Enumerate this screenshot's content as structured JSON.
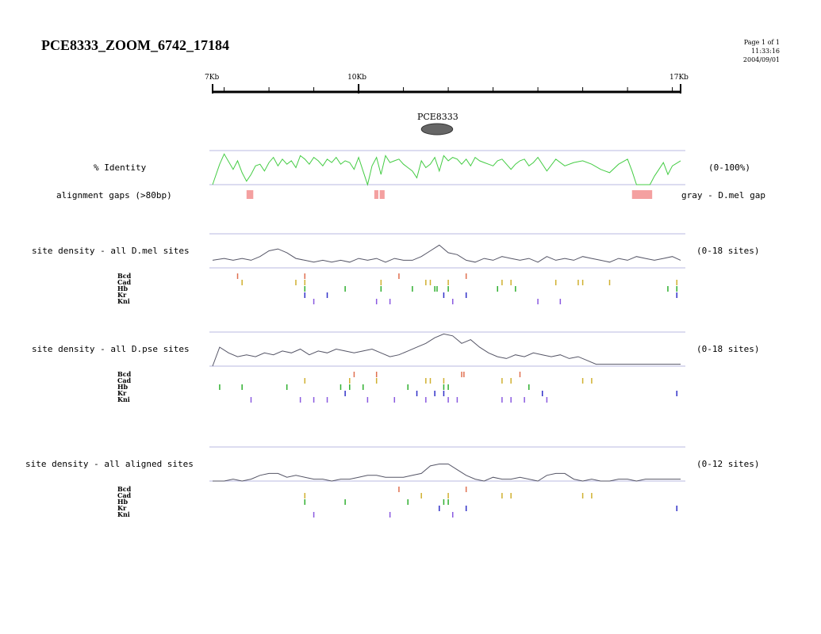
{
  "title": "PCE8333_ZOOM_6742_17184",
  "page_info": [
    "Page 1 of 1",
    "11:33:16",
    "2004/09/01"
  ],
  "colors": {
    "identity": "#44cc44",
    "density": "#555566",
    "guide": "#b8b8e0",
    "gap": "#f4a0a0",
    "scale": "#000000",
    "Bcd": "#e07050",
    "Cad": "#d0b030",
    "Hb": "#30b030",
    "Kr": "#3030c8",
    "Kni": "#8a5ae0"
  },
  "scale": {
    "start_kb": 6.742,
    "end_kb": 17.184,
    "labels": [
      {
        "text": "7Kb",
        "kb": 6.742,
        "side": "start"
      },
      {
        "text": "10Kb",
        "kb": 10.0,
        "side": "middle"
      },
      {
        "text": "17Kb",
        "kb": 17.184,
        "side": "end"
      }
    ],
    "major_ticks_kb": [
      6.742,
      10,
      17.184
    ],
    "minor_ticks_kb": [
      7,
      8,
      9,
      11,
      12,
      13,
      14,
      15,
      16,
      17
    ]
  },
  "gene": {
    "label": "PCE8333",
    "start_kb": 11.4,
    "end_kb": 12.1
  },
  "identity": {
    "label": "% Identity",
    "range_label": "(0-100%)",
    "x_kb": [
      6.742,
      6.9,
      7.0,
      7.2,
      7.3,
      7.4,
      7.5,
      7.6,
      7.7,
      7.8,
      7.9,
      8.0,
      8.1,
      8.2,
      8.3,
      8.4,
      8.5,
      8.6,
      8.7,
      8.8,
      8.9,
      9.0,
      9.1,
      9.2,
      9.3,
      9.4,
      9.5,
      9.6,
      9.7,
      9.8,
      9.9,
      10.0,
      10.1,
      10.2,
      10.3,
      10.4,
      10.5,
      10.6,
      10.7,
      10.8,
      10.9,
      11.0,
      11.1,
      11.2,
      11.3,
      11.4,
      11.5,
      11.6,
      11.7,
      11.8,
      11.9,
      12.0,
      12.1,
      12.2,
      12.3,
      12.4,
      12.5,
      12.6,
      12.7,
      12.8,
      12.9,
      13.0,
      13.1,
      13.2,
      13.3,
      13.4,
      13.5,
      13.6,
      13.7,
      13.8,
      13.9,
      14.0,
      14.2,
      14.4,
      14.6,
      14.8,
      15.0,
      15.2,
      15.4,
      15.6,
      15.8,
      16.0,
      16.1,
      16.2,
      16.3,
      16.4,
      16.5,
      16.6,
      16.7,
      16.8,
      16.9,
      17.0,
      17.184
    ],
    "values": [
      0,
      60,
      90,
      45,
      70,
      35,
      10,
      30,
      55,
      60,
      40,
      65,
      80,
      55,
      75,
      60,
      70,
      50,
      85,
      75,
      60,
      80,
      70,
      55,
      75,
      65,
      80,
      60,
      70,
      65,
      45,
      80,
      40,
      0,
      55,
      80,
      30,
      85,
      65,
      70,
      75,
      60,
      50,
      40,
      20,
      70,
      50,
      60,
      80,
      40,
      85,
      70,
      80,
      75,
      60,
      75,
      55,
      80,
      70,
      65,
      60,
      55,
      70,
      75,
      60,
      45,
      60,
      70,
      75,
      55,
      65,
      80,
      40,
      75,
      55,
      65,
      70,
      60,
      45,
      35,
      60,
      75,
      40,
      0,
      0,
      0,
      0,
      25,
      45,
      65,
      30,
      55,
      70
    ]
  },
  "gaps": {
    "label": "alignment gaps (>80bp)",
    "note": "gray - D.mel gap",
    "regions_kb": [
      [
        7.5,
        7.65
      ],
      [
        10.35,
        10.44
      ],
      [
        10.47,
        10.58
      ],
      [
        16.1,
        16.55
      ]
    ]
  },
  "panels": [
    {
      "id": "dmel",
      "label": "site density - all D.mel sites",
      "range_label": "(0-18 sites)",
      "density": {
        "x_kb": [
          6.742,
          7.0,
          7.2,
          7.4,
          7.6,
          7.8,
          8.0,
          8.2,
          8.4,
          8.6,
          8.8,
          9.0,
          9.2,
          9.4,
          9.6,
          9.8,
          10.0,
          10.2,
          10.4,
          10.6,
          10.8,
          11.0,
          11.2,
          11.4,
          11.6,
          11.8,
          12.0,
          12.2,
          12.4,
          12.6,
          12.8,
          13.0,
          13.2,
          13.4,
          13.6,
          13.8,
          14.0,
          14.2,
          14.4,
          14.6,
          14.8,
          15.0,
          15.2,
          15.4,
          15.6,
          15.8,
          16.0,
          16.2,
          16.4,
          16.6,
          16.8,
          17.0,
          17.184
        ],
        "values": [
          4,
          5,
          4,
          5,
          4,
          6,
          9,
          10,
          8,
          5,
          4,
          3,
          4,
          3,
          4,
          3,
          5,
          4,
          5,
          3,
          5,
          4,
          4,
          6,
          9,
          12,
          8,
          7,
          4,
          3,
          5,
          4,
          6,
          5,
          4,
          5,
          3,
          6,
          4,
          5,
          4,
          6,
          5,
          4,
          3,
          5,
          4,
          6,
          5,
          4,
          5,
          6,
          4
        ]
      },
      "tracks": [
        {
          "name": "Bcd",
          "sites_kb": [
            7.3,
            8.8,
            10.9,
            12.4
          ]
        },
        {
          "name": "Cad",
          "sites_kb": [
            7.4,
            8.6,
            8.8,
            10.5,
            11.5,
            11.6,
            12.0,
            13.2,
            13.4,
            14.4,
            14.9,
            15.0,
            15.6,
            17.1
          ]
        },
        {
          "name": "Hb",
          "sites_kb": [
            8.8,
            9.7,
            10.5,
            11.2,
            11.7,
            11.75,
            12.0,
            13.1,
            13.5,
            16.9,
            17.1
          ]
        },
        {
          "name": "Kr",
          "sites_kb": [
            8.8,
            9.3,
            11.9,
            12.4,
            17.1
          ]
        },
        {
          "name": "Kni",
          "sites_kb": [
            9.0,
            10.4,
            10.7,
            12.1,
            14.0,
            14.5
          ]
        }
      ]
    },
    {
      "id": "dpse",
      "label": "site density - all D.pse sites",
      "range_label": "(0-18 sites)",
      "density": {
        "x_kb": [
          6.742,
          6.9,
          7.1,
          7.3,
          7.5,
          7.7,
          7.9,
          8.1,
          8.3,
          8.5,
          8.7,
          8.9,
          9.1,
          9.3,
          9.5,
          9.7,
          9.9,
          10.1,
          10.3,
          10.5,
          10.7,
          10.9,
          11.1,
          11.3,
          11.5,
          11.7,
          11.9,
          12.1,
          12.3,
          12.5,
          12.7,
          12.9,
          13.1,
          13.3,
          13.5,
          13.7,
          13.9,
          14.1,
          14.3,
          14.5,
          14.7,
          14.9,
          15.1,
          15.3,
          15.5,
          15.7,
          15.9,
          16.1,
          16.3,
          16.5,
          16.7,
          16.9,
          17.184
        ],
        "values": [
          0,
          10,
          7,
          5,
          6,
          5,
          7,
          6,
          8,
          7,
          9,
          6,
          8,
          7,
          9,
          8,
          7,
          8,
          9,
          7,
          5,
          6,
          8,
          10,
          12,
          15,
          17,
          16,
          12,
          14,
          10,
          7,
          5,
          4,
          6,
          5,
          7,
          6,
          5,
          6,
          4,
          5,
          3,
          1,
          1,
          1,
          1,
          1,
          1,
          1,
          1,
          1,
          1
        ]
      },
      "tracks": [
        {
          "name": "Bcd",
          "sites_kb": [
            9.9,
            10.4,
            12.3,
            12.35,
            13.6
          ]
        },
        {
          "name": "Cad",
          "sites_kb": [
            8.8,
            9.8,
            10.4,
            11.5,
            11.6,
            11.9,
            13.2,
            13.4,
            15.0,
            15.2
          ]
        },
        {
          "name": "Hb",
          "sites_kb": [
            6.9,
            7.4,
            8.4,
            9.6,
            9.8,
            10.1,
            11.1,
            11.9,
            12.0,
            13.8
          ]
        },
        {
          "name": "Kr",
          "sites_kb": [
            9.7,
            11.3,
            11.7,
            11.9,
            14.1,
            17.1
          ]
        },
        {
          "name": "Kni",
          "sites_kb": [
            7.6,
            8.7,
            9.0,
            9.3,
            10.2,
            10.8,
            11.5,
            12.0,
            12.2,
            13.2,
            13.4,
            13.7,
            14.2
          ]
        }
      ]
    },
    {
      "id": "aligned",
      "label": "site density - all aligned sites",
      "range_label": "(0-12 sites)",
      "density": {
        "x_kb": [
          6.742,
          7.0,
          7.2,
          7.4,
          7.6,
          7.8,
          8.0,
          8.2,
          8.4,
          8.6,
          8.8,
          9.0,
          9.2,
          9.4,
          9.6,
          9.8,
          10.0,
          10.2,
          10.4,
          10.6,
          10.8,
          11.0,
          11.2,
          11.4,
          11.6,
          11.8,
          12.0,
          12.2,
          12.4,
          12.6,
          12.8,
          13.0,
          13.2,
          13.4,
          13.6,
          13.8,
          14.0,
          14.2,
          14.4,
          14.6,
          14.8,
          15.0,
          15.2,
          15.4,
          15.6,
          15.8,
          16.0,
          16.2,
          16.4,
          16.6,
          16.8,
          17.0,
          17.184
        ],
        "values": [
          0,
          0,
          1,
          0,
          1,
          3,
          4,
          4,
          2,
          3,
          2,
          1,
          1,
          0,
          1,
          1,
          2,
          3,
          3,
          2,
          2,
          2,
          3,
          4,
          8,
          9,
          9,
          6,
          3,
          1,
          0,
          2,
          1,
          1,
          2,
          1,
          0,
          3,
          4,
          4,
          1,
          0,
          1,
          0,
          0,
          1,
          1,
          0,
          1,
          1,
          1,
          1,
          1
        ]
      },
      "tracks": [
        {
          "name": "Bcd",
          "sites_kb": [
            10.9,
            12.4
          ]
        },
        {
          "name": "Cad",
          "sites_kb": [
            8.8,
            11.4,
            12.0,
            13.2,
            13.4,
            15.0,
            15.2
          ]
        },
        {
          "name": "Hb",
          "sites_kb": [
            8.8,
            9.7,
            11.1,
            11.9,
            12.0
          ]
        },
        {
          "name": "Kr",
          "sites_kb": [
            11.8,
            12.4,
            17.1
          ]
        },
        {
          "name": "Kni",
          "sites_kb": [
            9.0,
            10.7,
            12.1
          ]
        }
      ]
    }
  ]
}
